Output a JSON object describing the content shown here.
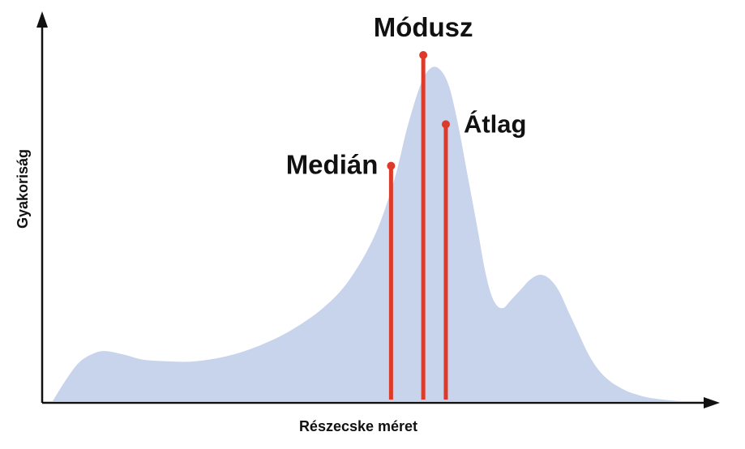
{
  "chart_data": {
    "type": "area",
    "title": "",
    "xlabel": "Részecske méret",
    "ylabel": "Gyakoriság",
    "xlim": [
      0,
      100
    ],
    "ylim": [
      0,
      100
    ],
    "grid": false,
    "series": [
      {
        "x": [
          0,
          2,
          4,
          6,
          8,
          11,
          14,
          18,
          22,
          27,
          32,
          37,
          42,
          46,
          50,
          53,
          55,
          57,
          58.5,
          60,
          61.5,
          63,
          64.5,
          66,
          67,
          68,
          69,
          70,
          71,
          72.5,
          74,
          75.5,
          77,
          78.5,
          80,
          81.5,
          83,
          84.5,
          86,
          87.5,
          89,
          90.5,
          92,
          94,
          96,
          98,
          100
        ],
        "y": [
          0,
          6,
          11,
          13.5,
          14.5,
          13.5,
          12,
          11.5,
          11.5,
          13,
          16,
          20.5,
          27,
          35,
          48,
          64,
          79,
          91,
          96,
          96,
          91,
          79,
          64,
          49,
          38.5,
          31,
          27.5,
          27,
          29,
          32,
          35,
          36.5,
          35.5,
          32,
          26,
          20,
          14,
          9.5,
          6.5,
          4.5,
          3,
          2,
          1.2,
          0.6,
          0.2,
          0,
          0
        ]
      }
    ],
    "markers": [
      {
        "label": "Medián",
        "x": 52.5,
        "y": 68
      },
      {
        "label": "Módusz",
        "x": 57.5,
        "y": 100
      },
      {
        "label": "Átlag",
        "x": 61.0,
        "y": 80
      }
    ],
    "colors": {
      "fill": "#c8d3ec",
      "marker": "#dd3a2a",
      "axis": "#111111",
      "text": "#111111"
    }
  }
}
